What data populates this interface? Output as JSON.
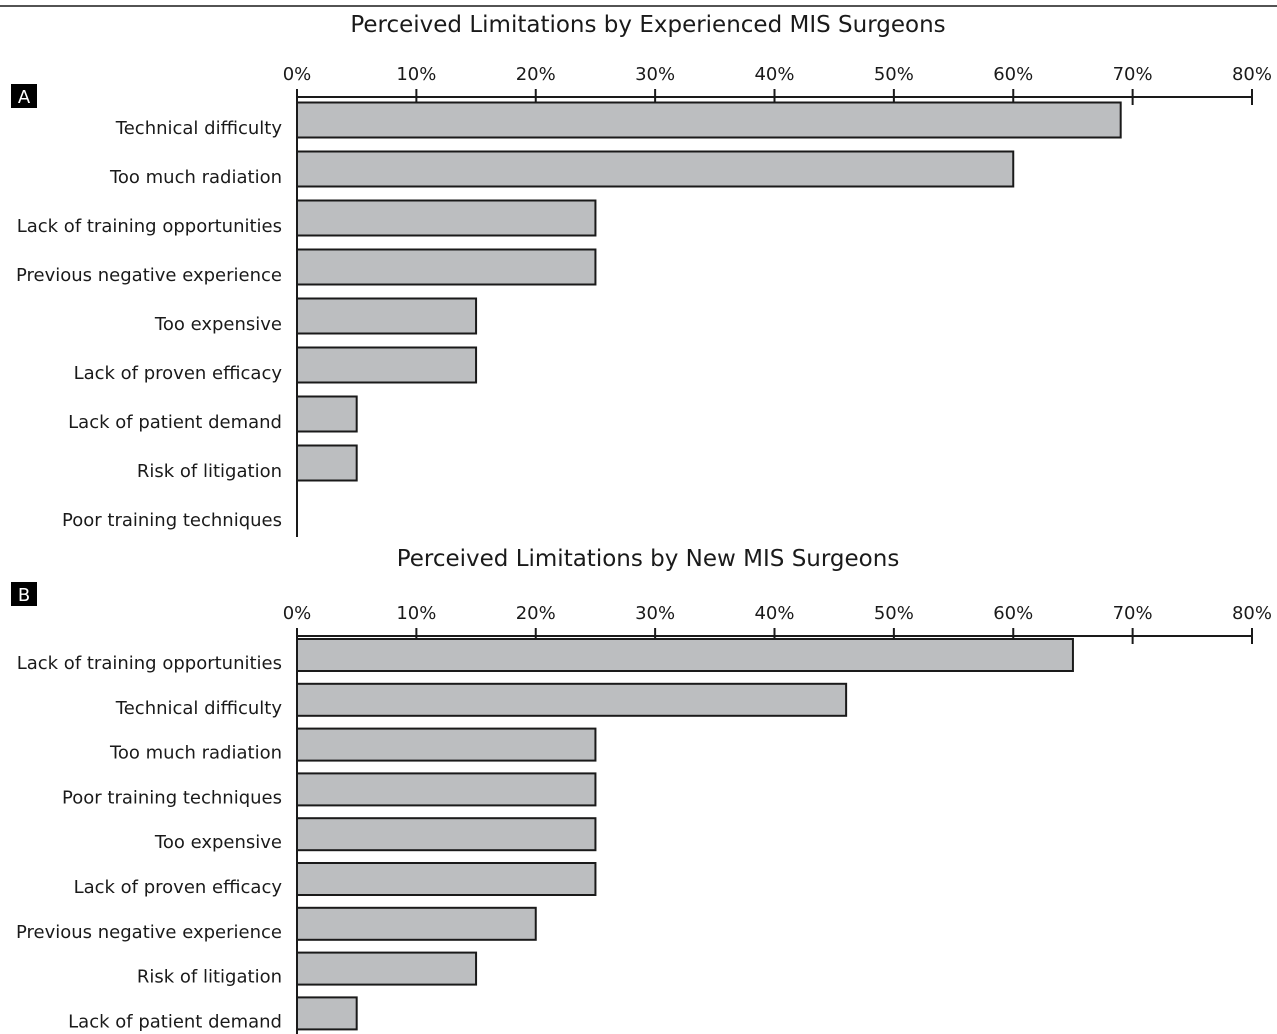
{
  "chart_data": [
    {
      "type": "bar",
      "orientation": "horizontal",
      "panel_label": "A",
      "title": "Perceived Limitations by Experienced MIS Surgeons",
      "xlim": [
        0,
        80
      ],
      "x_ticks": [
        "0%",
        "10%",
        "20%",
        "30%",
        "40%",
        "50%",
        "60%",
        "70%",
        "80%"
      ],
      "x_tick_values": [
        0,
        10,
        20,
        30,
        40,
        50,
        60,
        70,
        80
      ],
      "axis_position": "top",
      "grid": false,
      "categories": [
        "Technical difficulty",
        "Too much radiation",
        "Lack of training opportunities",
        "Previous negative experience",
        "Too expensive",
        "Lack of proven efficacy",
        "Lack of patient demand",
        "Risk of litigation",
        "Poor training techniques"
      ],
      "values": [
        69,
        60,
        25,
        25,
        15,
        15,
        5,
        5,
        0
      ],
      "colors": {
        "bar_fill": "#bcbec0",
        "bar_stroke": "#1a1a1a"
      }
    },
    {
      "type": "bar",
      "orientation": "horizontal",
      "panel_label": "B",
      "title": "Perceived Limitations by New MIS Surgeons",
      "xlim": [
        0,
        80
      ],
      "x_ticks": [
        "0%",
        "10%",
        "20%",
        "30%",
        "40%",
        "50%",
        "60%",
        "70%",
        "80%"
      ],
      "x_tick_values": [
        0,
        10,
        20,
        30,
        40,
        50,
        60,
        70,
        80
      ],
      "axis_position": "top",
      "grid": false,
      "categories": [
        "Lack of training opportunities",
        "Technical difficulty",
        "Too much radiation",
        "Poor training techniques",
        "Too expensive",
        "Lack of proven efficacy",
        "Previous negative experience",
        "Risk of litigation",
        "Lack of patient demand"
      ],
      "values": [
        65,
        46,
        25,
        25,
        25,
        25,
        20,
        15,
        5
      ],
      "colors": {
        "bar_fill": "#bcbec0",
        "bar_stroke": "#1a1a1a"
      }
    }
  ]
}
